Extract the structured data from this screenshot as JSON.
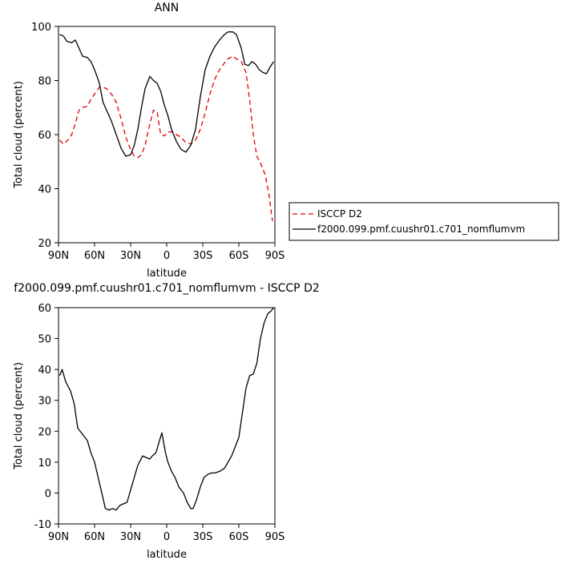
{
  "chart_data": [
    {
      "type": "line",
      "title": "ANN",
      "xlabel": "latitude",
      "ylabel": "Total cloud (percent)",
      "xlim": [
        -90,
        90
      ],
      "ylim": [
        20,
        100
      ],
      "x_ticks": [
        -90,
        -60,
        -30,
        0,
        30,
        60,
        90
      ],
      "x_tick_labels": [
        "90N",
        "60N",
        "30N",
        "0",
        "30S",
        "60S",
        "90S"
      ],
      "y_ticks": [
        20,
        40,
        60,
        80,
        100
      ],
      "y_tick_labels": [
        "20",
        "40",
        "60",
        "80",
        "100"
      ],
      "legend_position": "right",
      "series": [
        {
          "name": "ISCCP D2",
          "color": "#e00000",
          "dash": "dashed",
          "x": [
            -89,
            -86,
            -82,
            -79,
            -76,
            -73,
            -70,
            -66,
            -63,
            -60,
            -56,
            -53,
            -50,
            -46,
            -42,
            -38,
            -34,
            -30,
            -27,
            -24,
            -21,
            -18,
            -14,
            -11,
            -8,
            -5,
            -2,
            1,
            4,
            8,
            12,
            16,
            20,
            24,
            28,
            32,
            36,
            40,
            44,
            48,
            51,
            55,
            58,
            62,
            66,
            69,
            72,
            75,
            78,
            82,
            85,
            88
          ],
          "y": [
            58,
            56.5,
            58,
            60,
            64,
            69,
            70,
            70.5,
            73,
            75,
            77.5,
            77.5,
            77,
            75,
            72,
            66,
            59,
            54.5,
            52,
            51.5,
            52.5,
            56,
            64,
            69,
            68.5,
            60,
            59.5,
            61,
            61,
            60,
            59,
            57,
            56.5,
            58,
            62,
            68,
            75,
            80.5,
            84,
            86.5,
            88,
            89,
            88,
            87,
            83,
            73,
            60,
            52,
            49.5,
            45,
            38,
            28
          ]
        },
        {
          "name": "f2000.099.pmf.cuushr01.c701_nomflumvm",
          "color": "#000000",
          "dash": "solid",
          "x": [
            -89,
            -86,
            -83,
            -79,
            -76,
            -73,
            -70,
            -66,
            -63,
            -60,
            -56,
            -53,
            -50,
            -46,
            -42,
            -38,
            -34,
            -30,
            -27,
            -24,
            -21,
            -18,
            -14,
            -11,
            -8,
            -5,
            -2,
            1,
            4,
            8,
            12,
            16,
            20,
            24,
            28,
            32,
            36,
            40,
            44,
            48,
            51,
            55,
            58,
            62,
            65,
            68,
            71,
            74,
            77,
            80,
            83,
            86,
            89
          ],
          "y": [
            97,
            96.5,
            94.5,
            94,
            95,
            92,
            89,
            88.5,
            87,
            84,
            79,
            72,
            69,
            65,
            60,
            55,
            52,
            52.5,
            56,
            62,
            70,
            77,
            81.5,
            80,
            79,
            76,
            71,
            67,
            62,
            57.5,
            54.5,
            53.5,
            56,
            62,
            74,
            84,
            89,
            92.5,
            95,
            97,
            98,
            98,
            97,
            92,
            86,
            85.5,
            87,
            86,
            84,
            83,
            82.5,
            85,
            87
          ]
        }
      ]
    },
    {
      "type": "line",
      "title": "f2000.099.pmf.cuushr01.c701_nomflumvm - ISCCP D2",
      "xlabel": "latitude",
      "ylabel": "Total cloud (percent)",
      "xlim": [
        -90,
        90
      ],
      "ylim": [
        -10,
        60
      ],
      "x_ticks": [
        -90,
        -60,
        -30,
        0,
        30,
        60,
        90
      ],
      "x_tick_labels": [
        "90N",
        "60N",
        "30N",
        "0",
        "30S",
        "60S",
        "90S"
      ],
      "y_ticks": [
        -10,
        0,
        10,
        20,
        30,
        40,
        50,
        60
      ],
      "y_tick_labels": [
        "-10",
        "0",
        "10",
        "20",
        "30",
        "40",
        "50",
        "60"
      ],
      "series": [
        {
          "name": "",
          "color": "#000000",
          "dash": "solid",
          "x": [
            -89,
            -87,
            -84,
            -80,
            -77,
            -74,
            -70,
            -66,
            -63,
            -60,
            -57,
            -54,
            -51,
            -48,
            -45,
            -42,
            -39,
            -36,
            -33,
            -30,
            -27,
            -24,
            -20,
            -17,
            -14,
            -12,
            -9,
            -6,
            -4,
            -1,
            1,
            4,
            7,
            10,
            14,
            17,
            20,
            22,
            25,
            28,
            31,
            34,
            37,
            40,
            44,
            48,
            51,
            54,
            57,
            60,
            63,
            66,
            69,
            72,
            75,
            78,
            81,
            84,
            87,
            89
          ],
          "y": [
            38,
            40,
            36,
            33,
            29,
            21,
            19,
            17,
            13,
            10,
            5,
            0,
            -5,
            -5.5,
            -5,
            -5.5,
            -4,
            -3.5,
            -3,
            1,
            5,
            9,
            12,
            11.5,
            11,
            12,
            13,
            17,
            19.5,
            13,
            10,
            7,
            5,
            2,
            0,
            -3,
            -5,
            -5,
            -2,
            2,
            5,
            6,
            6.5,
            6.5,
            7,
            8,
            10,
            12,
            15,
            18,
            26,
            34,
            38,
            38.5,
            42,
            50,
            55,
            58,
            59,
            60
          ]
        }
      ]
    }
  ]
}
